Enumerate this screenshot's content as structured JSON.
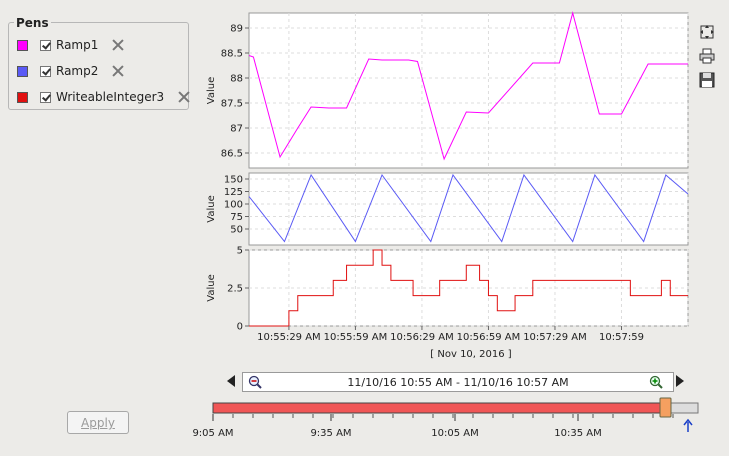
{
  "pens": {
    "title": "Pens",
    "items": [
      {
        "name": "Ramp1",
        "color": "#ff00ff",
        "checked": true
      },
      {
        "name": "Ramp2",
        "color": "#5a5af5",
        "checked": true
      },
      {
        "name": "WriteableInteger3",
        "color": "#e01010",
        "checked": true
      }
    ]
  },
  "apply_label": "Apply",
  "toolbar": {
    "icons": [
      "fit-icon",
      "print-icon",
      "save-icon"
    ]
  },
  "chart_data": {
    "type": "line",
    "x_tick_labels": [
      "10:55:29 AM",
      "10:55:59 AM",
      "10:56:29 AM",
      "10:56:59 AM",
      "10:57:29 AM",
      "10:57:59"
    ],
    "date_label": "[ Nov 10, 2016 ]",
    "subplots": [
      {
        "ylabel": "Value",
        "ylim": [
          86.2,
          89.3
        ],
        "yticks": [
          86.5,
          87,
          87.5,
          88,
          88.5,
          89
        ],
        "ytick_labels": [
          "86.5",
          "87",
          "87.5",
          "88",
          "88.5",
          "89"
        ],
        "series": [
          {
            "name": "Ramp1",
            "color": "#ff00ff",
            "step": false,
            "x": [
              0,
              2,
              14,
              22,
              28,
              36,
              44,
              54,
              60,
              72,
              76,
              88,
              98,
              108,
              128,
              140,
              146,
              158,
              168,
              180,
              188,
              198
            ],
            "y": [
              88.45,
              88.42,
              86.42,
              87.0,
              87.42,
              87.4,
              87.4,
              88.38,
              88.36,
              88.36,
              88.33,
              86.38,
              87.32,
              87.3,
              88.3,
              88.3,
              89.3,
              87.28,
              87.28,
              88.28,
              88.28,
              88.28
            ]
          }
        ]
      },
      {
        "ylabel": "Value",
        "ylim": [
          18,
          162
        ],
        "yticks": [
          50,
          75,
          100,
          125,
          150
        ],
        "ytick_labels": [
          "50",
          "75",
          "100",
          "125",
          "150"
        ],
        "series": [
          {
            "name": "Ramp2",
            "color": "#5a5af5",
            "step": false,
            "x": [
              0,
              16,
              28,
              48,
              60,
              82,
              92,
              114,
              124,
              146,
              156,
              178,
              188,
              198
            ],
            "y": [
              115,
              25,
              158,
              25,
              158,
              25,
              158,
              25,
              158,
              25,
              158,
              25,
              158,
              120
            ]
          }
        ]
      },
      {
        "ylabel": "Value",
        "ylim": [
          0,
          5
        ],
        "yticks": [
          0,
          2.5,
          5
        ],
        "ytick_labels": [
          "0",
          "2.5",
          "5"
        ],
        "series": [
          {
            "name": "WriteableInteger3",
            "color": "#e01010",
            "step": true,
            "x": [
              0,
              18,
              22,
              30,
              38,
              44,
              50,
              56,
              60,
              64,
              70,
              74,
              80,
              86,
              94,
              98,
              104,
              108,
              112,
              116,
              120,
              128,
              140,
              168,
              172,
              182,
              186,
              190,
              198
            ],
            "y": [
              0,
              1,
              2,
              2,
              3,
              4,
              4,
              5,
              4,
              3,
              3,
              2,
              2,
              3,
              3,
              4,
              3,
              2,
              1,
              1,
              2,
              3,
              3,
              3,
              2,
              2,
              3,
              2,
              2
            ]
          }
        ]
      }
    ]
  },
  "navigator": {
    "range_text": "11/10/16 10:55 AM - 11/10/16 10:57 AM",
    "timeline_labels": [
      "9:05 AM",
      "9:35 AM",
      "10:05 AM",
      "10:35 AM"
    ]
  }
}
